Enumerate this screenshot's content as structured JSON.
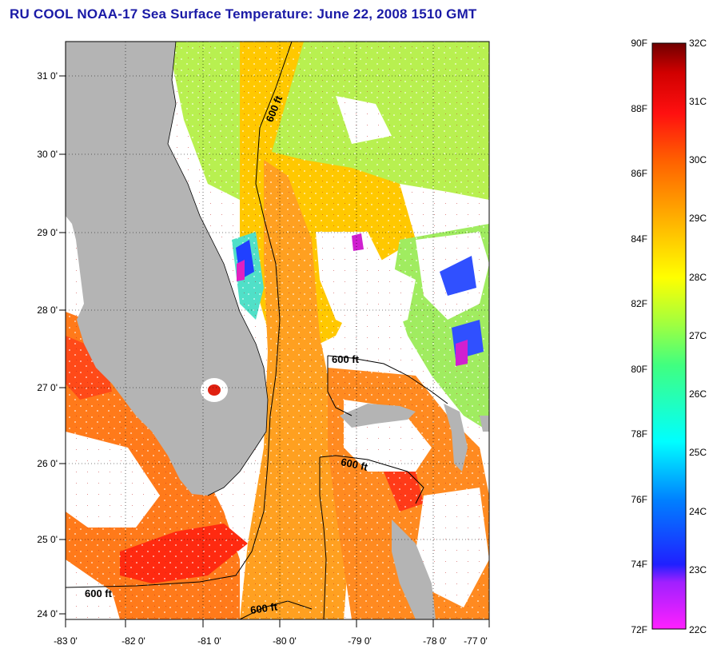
{
  "title": "RU COOL  NOAA-17  Sea Surface Temperature:  June 22, 2008 1510 GMT",
  "map": {
    "lon_ticks": [
      "-83 0'",
      "-82 0'",
      "-81 0'",
      "-80 0'",
      "-79 0'",
      "-78 0'",
      "-77 0'"
    ],
    "lat_ticks": [
      "31 0'",
      "30 0'",
      "29 0'",
      "28 0'",
      "27 0'",
      "26 0'",
      "25 0'",
      "24 0'"
    ],
    "contour_labels": [
      "600 ft",
      "600 ft",
      "600 ft",
      "600 ft",
      "600 ft"
    ],
    "colors": {
      "land": "#b4b4b4",
      "cloud": "#ffffff",
      "warm": "#ff7a1a",
      "hot": "#ff2a10",
      "mid": "#ffb400",
      "cool": "#b8f050",
      "cyan": "#50e0c8",
      "blue": "#2040ff",
      "magenta": "#e020c0"
    }
  },
  "colorbar": {
    "fahrenheit": [
      "90F",
      "88F",
      "86F",
      "84F",
      "82F",
      "80F",
      "78F",
      "76F",
      "74F",
      "72F"
    ],
    "celsius": [
      "32C",
      "31C",
      "30C",
      "29C",
      "28C",
      "27C",
      "26C",
      "25C",
      "24C",
      "23C",
      "22C"
    ]
  }
}
